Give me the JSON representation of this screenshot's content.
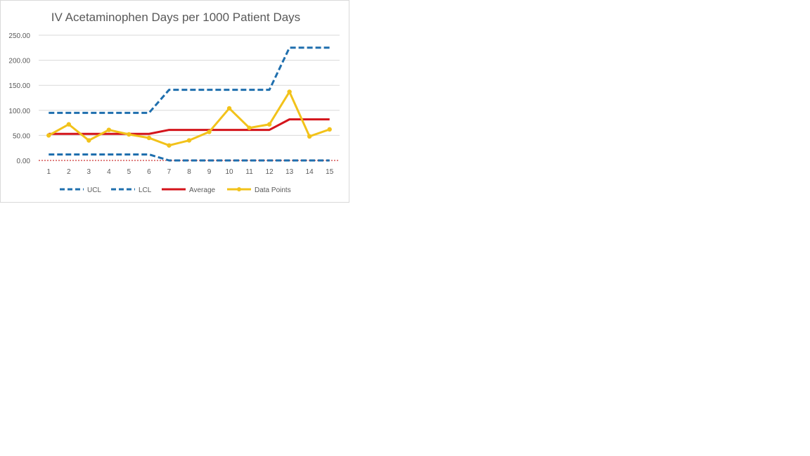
{
  "chart_data": {
    "type": "line",
    "title": "IV Acetaminophen Days per 1000 Patient Days",
    "xlabel": "",
    "ylabel": "",
    "categories": [
      "1",
      "2",
      "3",
      "4",
      "5",
      "6",
      "7",
      "8",
      "9",
      "10",
      "11",
      "12",
      "13",
      "14",
      "15"
    ],
    "ylim": [
      0,
      250
    ],
    "yticks": [
      0,
      50,
      100,
      150,
      200,
      250
    ],
    "ytick_labels": [
      "0.00",
      "50.00",
      "100.00",
      "150.00",
      "200.00",
      "250.00"
    ],
    "grid": true,
    "legend_position": "bottom",
    "series": [
      {
        "name": "UCL",
        "color": "#1f6fae",
        "style": "dashed",
        "values": [
          95,
          95,
          95,
          95,
          95,
          95,
          141,
          141,
          141,
          141,
          141,
          141,
          225,
          225,
          225
        ]
      },
      {
        "name": "LCL",
        "color": "#1f6fae",
        "style": "dashed",
        "values": [
          12,
          12,
          12,
          12,
          12,
          12,
          0,
          0,
          0,
          0,
          0,
          0,
          0,
          0,
          0
        ]
      },
      {
        "name": "Average",
        "color": "#d4141b",
        "style": "solid",
        "values": [
          53,
          53,
          53,
          53,
          53,
          53,
          61,
          61,
          61,
          61,
          61,
          61,
          82,
          82,
          82
        ]
      },
      {
        "name": "Data Points",
        "color": "#f2c21a",
        "style": "solid-markers",
        "values": [
          50,
          72,
          40,
          61,
          52,
          45,
          30,
          40,
          57,
          104,
          65,
          72,
          137,
          48,
          62
        ]
      }
    ],
    "zero_line_color": "#c00000"
  }
}
